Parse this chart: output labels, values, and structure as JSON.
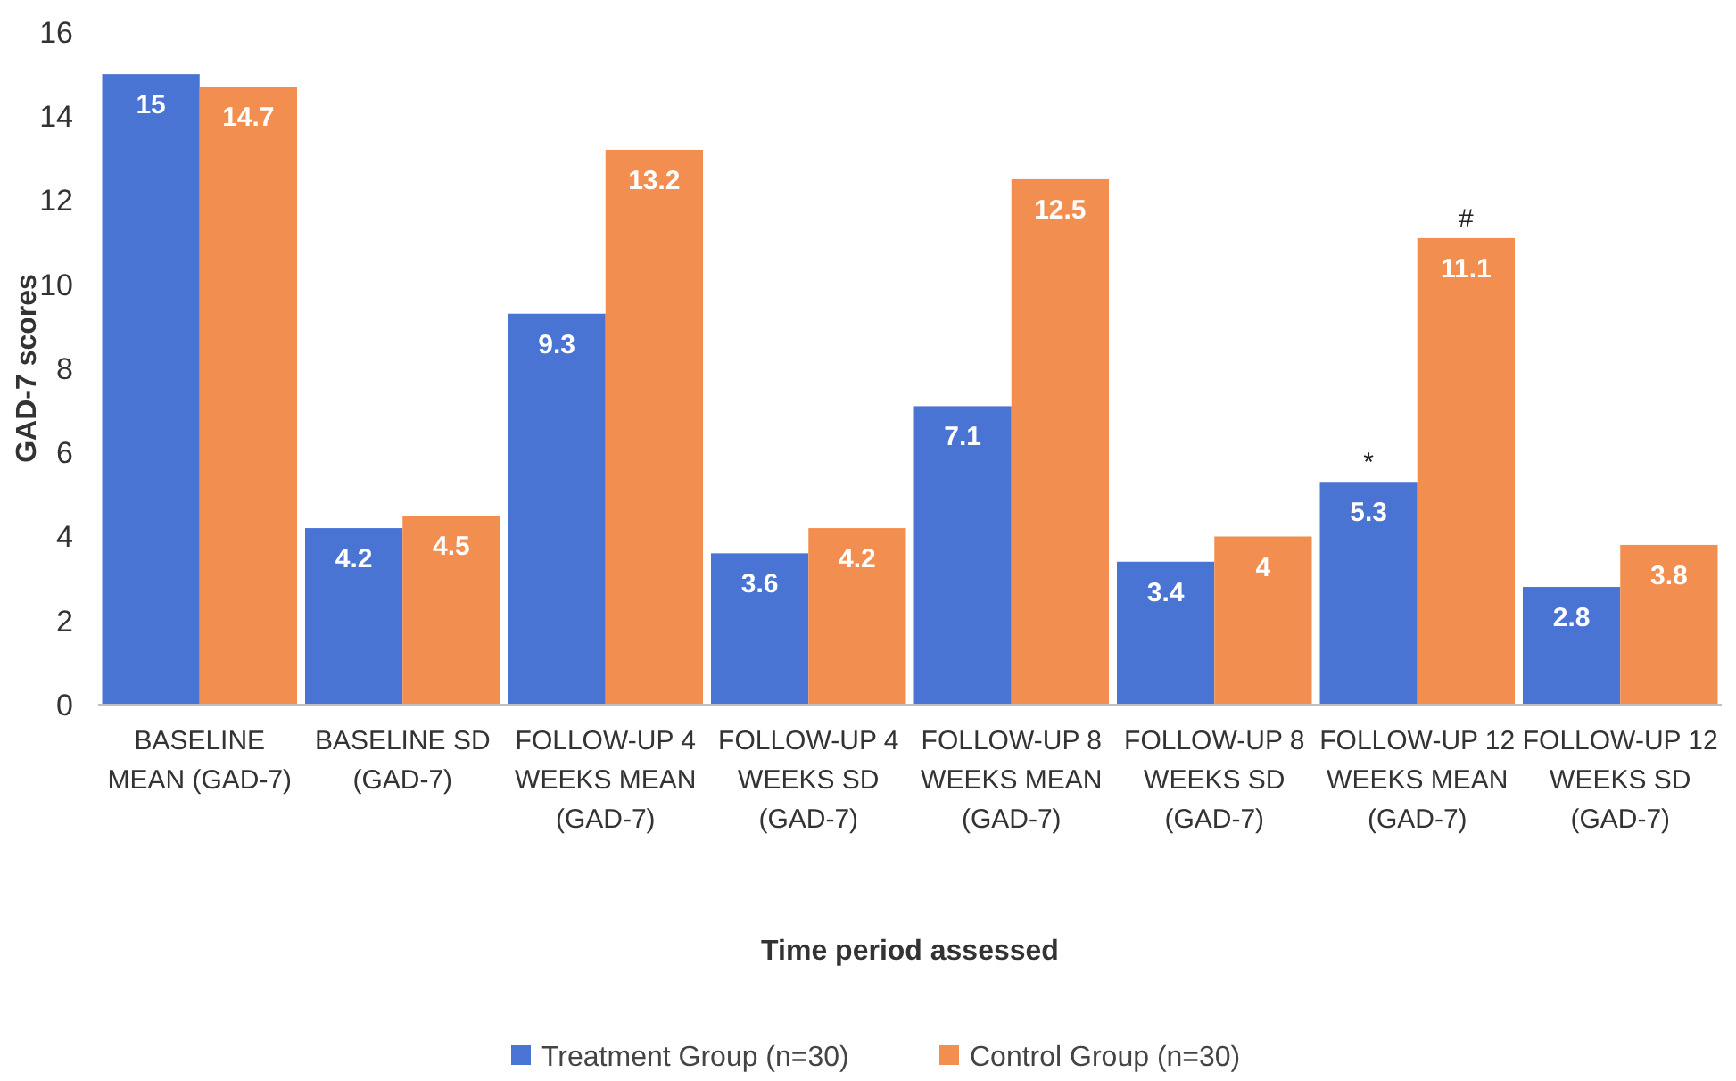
{
  "chart_data": {
    "type": "bar",
    "xlabel": "Time period assessed",
    "ylabel": "GAD-7 scores",
    "categories": [
      "BASELINE MEAN (GAD-7)",
      "BASELINE SD (GAD-7)",
      "FOLLOW-UP 4 WEEKS MEAN (GAD-7)",
      "FOLLOW-UP 4 WEEKS SD (GAD-7)",
      "FOLLOW-UP 8 WEEKS MEAN (GAD-7)",
      "FOLLOW-UP 8 WEEKS SD (GAD-7)",
      "FOLLOW-UP 12 WEEKS MEAN (GAD-7)",
      "FOLLOW-UP 12 WEEKS SD (GAD-7)"
    ],
    "series": [
      {
        "name": "Treatment Group (n=30)",
        "color": "#4a74d3",
        "values": [
          15,
          4.2,
          9.3,
          3.6,
          7.1,
          3.4,
          5.3,
          2.8
        ]
      },
      {
        "name": "Control Group (n=30)",
        "color": "#f28e4f",
        "values": [
          14.7,
          4.5,
          13.2,
          4.2,
          12.5,
          4,
          11.1,
          3.8
        ]
      }
    ],
    "ylim": [
      0,
      16
    ],
    "yticks": [
      0,
      2,
      4,
      6,
      8,
      10,
      12,
      14,
      16
    ],
    "grid": false,
    "legend": "bottom",
    "data_labels": true,
    "annotations": [
      {
        "text": "*",
        "x": "FOLLOW-UP 12 WEEKS MEAN (GAD-7)",
        "y": 5.3
      },
      {
        "text": "#",
        "x": "FOLLOW-UP 12 WEEKS MEAN (GAD-7)",
        "y": 11.1
      }
    ]
  }
}
